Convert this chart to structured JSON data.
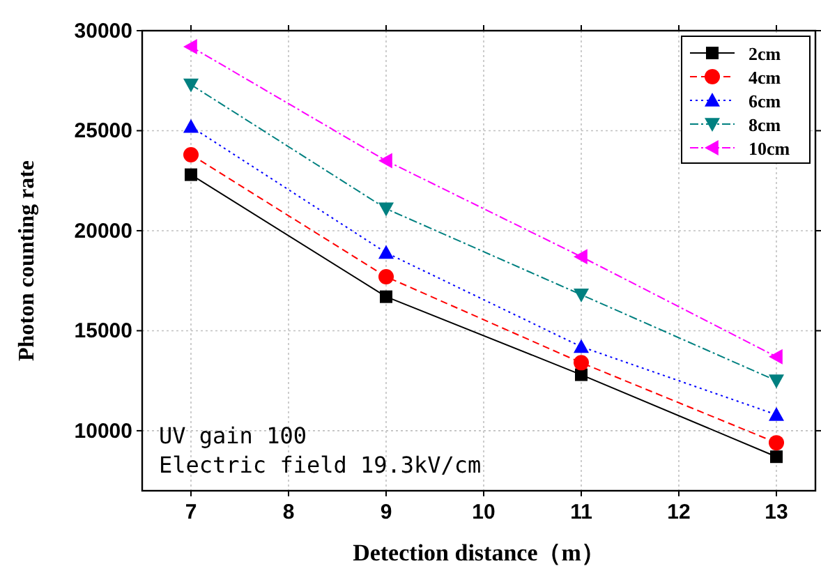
{
  "chart_data": {
    "type": "line",
    "xlabel": "Detection distance（m）",
    "ylabel": "Photon counting rate",
    "x": [
      7,
      9,
      11,
      13
    ],
    "series": [
      {
        "name": "2cm",
        "color": "#000000",
        "marker": "square",
        "line_style": "solid",
        "values": [
          22800,
          16700,
          12800,
          8700
        ]
      },
      {
        "name": "4cm",
        "color": "#ff0000",
        "marker": "circle",
        "line_style": "dashed",
        "values": [
          23800,
          17700,
          13400,
          9400
        ]
      },
      {
        "name": "6cm",
        "color": "#0000ff",
        "marker": "triangle",
        "line_style": "dotted",
        "values": [
          25200,
          18900,
          14200,
          10800
        ]
      },
      {
        "name": "8cm",
        "color": "#008080",
        "marker": "triangle_down",
        "line_style": "dashdot",
        "values": [
          27300,
          21100,
          16800,
          12500
        ]
      },
      {
        "name": "10cm",
        "color": "#ff00ff",
        "marker": "triangle_left",
        "line_style": "dashdot",
        "values": [
          29200,
          23500,
          18700,
          13700
        ]
      }
    ],
    "xlim": [
      6.5,
      13.4
    ],
    "xticks": [
      7,
      8,
      9,
      10,
      11,
      12,
      13
    ],
    "ylim": [
      7000,
      30000
    ],
    "yticks": [
      10000,
      15000,
      20000,
      25000,
      30000
    ],
    "grid": true,
    "legend": "top right",
    "annotations": [
      "UV gain 100\nElectric field 19.3kV/cm"
    ]
  }
}
